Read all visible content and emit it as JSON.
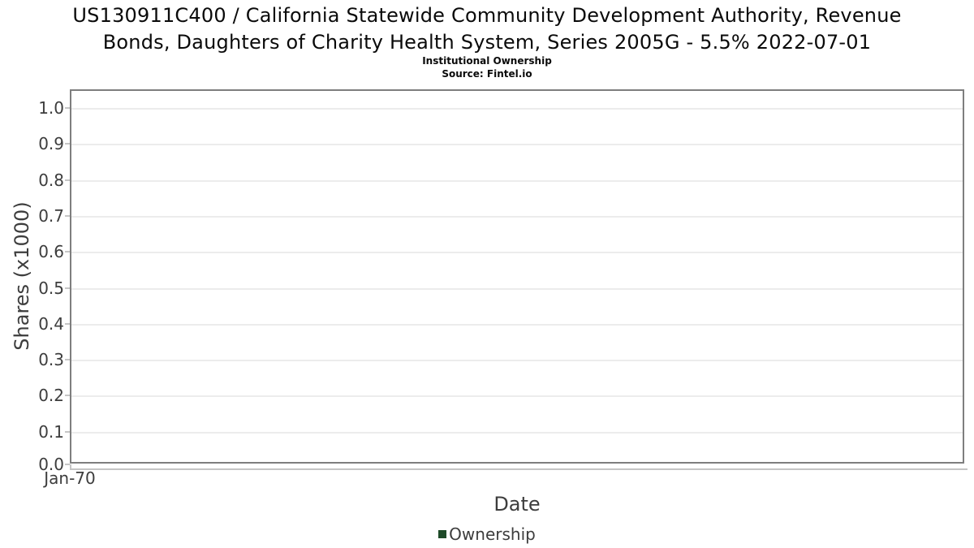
{
  "chart_data": {
    "type": "line",
    "title": "US130911C400 / California Statewide Community Development Authority, Revenue Bonds, Daughters of Charity Health System, Series 2005G - 5.5% 2022-07-01",
    "title_lines": [
      "US130911C400 / California Statewide Community Development Authority, Revenue",
      "Bonds, Daughters of Charity Health System, Series 2005G - 5.5% 2022-07-01"
    ],
    "subtitle": "Institutional Ownership",
    "source": "Source: Fintel.io",
    "xlabel": "Date",
    "ylabel": "Shares (x1000)",
    "x_ticks": [
      "Jan-70"
    ],
    "y_ticks": [
      "1.0",
      "0.9",
      "0.8",
      "0.7",
      "0.6",
      "0.5",
      "0.4",
      "0.3",
      "0.2",
      "0.1",
      "0.0"
    ],
    "ylim": [
      0.0,
      1.04
    ],
    "grid": "horizontal",
    "legend": {
      "position": "bottom-center",
      "entries": [
        {
          "label": "Ownership",
          "color": "#1e4a28"
        }
      ]
    },
    "series": [
      {
        "name": "Ownership",
        "color": "#1e4a28",
        "x": [],
        "values": []
      }
    ]
  },
  "colors": {
    "frame": "#7e7e7e",
    "gridline": "#ececec",
    "tick": "#c6c6c6",
    "axis_text": "#3d3d3d",
    "title_text": "#0a0a0a",
    "legend_green": "#1e4a28"
  }
}
